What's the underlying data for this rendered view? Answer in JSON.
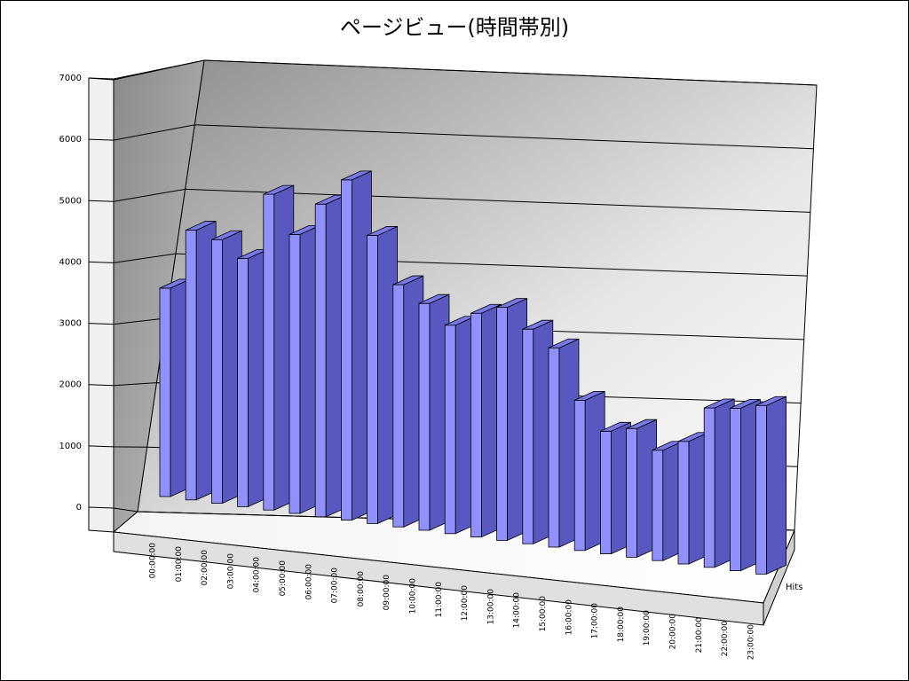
{
  "chart_data": {
    "type": "bar3d",
    "title": "ページビュー(時間帯別)",
    "categories": [
      "00:00:00",
      "01:00:00",
      "02:00:00",
      "03:00:00",
      "04:00:00",
      "05:00:00",
      "06:00:00",
      "07:00:00",
      "08:00:00",
      "09:00:00",
      "10:00:00",
      "11:00:00",
      "12:00:00",
      "13:00:00",
      "14:00:00",
      "15:00:00",
      "16:00:00",
      "17:00:00",
      "18:00:00",
      "19:00:00",
      "20:00:00",
      "21:00:00",
      "22:00:00",
      "23:00:00"
    ],
    "series": [
      {
        "name": "Hits",
        "color": "#9090ff",
        "values": [
          3400,
          4400,
          4300,
          4050,
          5150,
          4550,
          5100,
          5550,
          4700,
          3950,
          3700,
          3400,
          3650,
          3800,
          3500,
          3250,
          2450,
          2000,
          2100,
          1800,
          2000,
          2600,
          2650,
          2750
        ]
      }
    ],
    "ylim": [
      0,
      7000
    ],
    "yticks": [
      0,
      1000,
      2000,
      3000,
      4000,
      5000,
      6000,
      7000
    ],
    "grid": true
  }
}
